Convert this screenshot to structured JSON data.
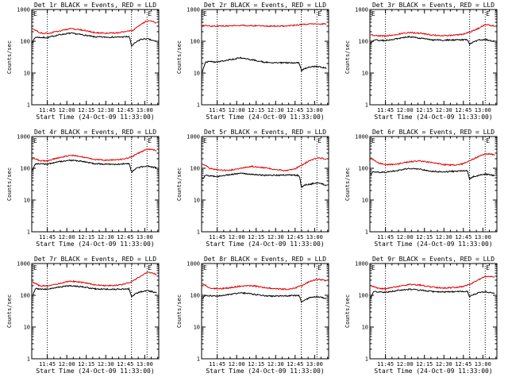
{
  "chart_data": [
    {
      "type": "line",
      "title": "Det 1r BLACK = Events, RED = LLD",
      "xlabel": "Start Time (24-Oct-09 11:33:00)",
      "ylabel": "Counts/sec",
      "yscale": "log",
      "ylim": [
        1,
        1000
      ],
      "yticks": [
        "1",
        "10",
        "100",
        "1000"
      ],
      "xlim": [
        11.55,
        13.18
      ],
      "xticks": [
        "11:45",
        "12:00",
        "12:15",
        "12:30",
        "12:45",
        "13:00"
      ],
      "vlines": [
        11.75,
        12.83,
        13.03
      ],
      "corner_mark": "E",
      "series": [
        {
          "name": "Events",
          "color": "#000000",
          "x": [
            11.56,
            11.6,
            11.65,
            11.75,
            11.9,
            12.05,
            12.2,
            12.35,
            12.5,
            12.65,
            12.8,
            12.83,
            12.88,
            12.95,
            13.03,
            13.1,
            13.15
          ],
          "y": [
            95,
            135,
            132,
            130,
            160,
            180,
            160,
            138,
            135,
            135,
            140,
            70,
            90,
            115,
            120,
            105,
            100
          ]
        },
        {
          "name": "LLD",
          "color": "#e00000",
          "x": [
            11.56,
            11.65,
            11.75,
            11.9,
            12.05,
            12.2,
            12.35,
            12.5,
            12.65,
            12.75,
            12.85,
            12.95,
            13.03,
            13.1,
            13.15
          ],
          "y": [
            250,
            185,
            175,
            210,
            250,
            225,
            190,
            180,
            185,
            200,
            220,
            330,
            440,
            420,
            380
          ]
        }
      ]
    },
    {
      "type": "line",
      "title": "Det 2r BLACK = Events, RED = LLD",
      "xlabel": "Start Time (24-Oct-09 11:33:00)",
      "ylabel": "Counts/sec",
      "yscale": "log",
      "ylim": [
        1,
        1000
      ],
      "yticks": [
        "1",
        "10",
        "100",
        "1000"
      ],
      "xlim": [
        11.55,
        13.18
      ],
      "xticks": [
        "11:45",
        "12:00",
        "12:15",
        "12:30",
        "12:45",
        "13:00"
      ],
      "vlines": [
        11.75,
        12.83,
        13.03
      ],
      "corner_mark": "E",
      "series": [
        {
          "name": "Events",
          "color": "#000000",
          "x": [
            11.56,
            11.6,
            11.65,
            11.75,
            11.9,
            12.05,
            12.2,
            12.35,
            12.5,
            12.65,
            12.8,
            12.83,
            12.88,
            12.95,
            13.03,
            13.1,
            13.15
          ],
          "y": [
            10,
            22,
            23,
            22,
            26,
            30,
            26,
            22,
            21,
            21,
            21,
            12,
            14,
            16,
            16,
            15,
            14
          ]
        },
        {
          "name": "LLD",
          "color": "#e00000",
          "x": [
            11.56,
            11.65,
            11.75,
            11.9,
            12.05,
            12.2,
            12.35,
            12.5,
            12.65,
            12.75,
            12.85,
            12.95,
            13.03,
            13.1,
            13.15
          ],
          "y": [
            310,
            305,
            300,
            305,
            315,
            310,
            305,
            300,
            305,
            320,
            340,
            350,
            360,
            355,
            350
          ]
        }
      ]
    },
    {
      "type": "line",
      "title": "Det 3r BLACK = Events, RED = LLD",
      "xlabel": "Start Time (24-Oct-09 11:33:00)",
      "ylabel": "Counts/sec",
      "yscale": "log",
      "ylim": [
        1,
        1000
      ],
      "yticks": [
        "1",
        "10",
        "100",
        "1000"
      ],
      "xlim": [
        11.55,
        13.18
      ],
      "xticks": [
        "11:45",
        "12:00",
        "12:15",
        "12:30",
        "12:45",
        "13:00"
      ],
      "vlines": [
        11.75,
        12.83,
        13.03
      ],
      "corner_mark": "E",
      "series": [
        {
          "name": "Events",
          "color": "#000000",
          "x": [
            11.56,
            11.6,
            11.65,
            11.75,
            11.9,
            12.05,
            12.2,
            12.35,
            12.5,
            12.65,
            12.8,
            12.83,
            12.88,
            12.95,
            13.03,
            13.1,
            13.15
          ],
          "y": [
            85,
            110,
            108,
            105,
            120,
            140,
            125,
            110,
            108,
            110,
            112,
            80,
            95,
            110,
            115,
            105,
            100
          ]
        },
        {
          "name": "LLD",
          "color": "#e00000",
          "x": [
            11.56,
            11.65,
            11.75,
            11.9,
            12.05,
            12.2,
            12.35,
            12.5,
            12.65,
            12.75,
            12.85,
            12.95,
            13.03,
            13.1,
            13.15
          ],
          "y": [
            160,
            150,
            145,
            165,
            190,
            180,
            155,
            150,
            155,
            170,
            200,
            260,
            330,
            320,
            300
          ]
        }
      ]
    },
    {
      "type": "line",
      "title": "Det 4r BLACK = Events, RED = LLD",
      "xlabel": "Start Time (24-Oct-09 11:33:00)",
      "ylabel": "Counts/sec",
      "yscale": "log",
      "ylim": [
        1,
        1000
      ],
      "yticks": [
        "1",
        "10",
        "100",
        "1000"
      ],
      "xlim": [
        11.55,
        13.18
      ],
      "xticks": [
        "11:45",
        "12:00",
        "12:15",
        "12:30",
        "12:45",
        "13:00"
      ],
      "vlines": [
        11.75,
        12.83,
        13.03
      ],
      "corner_mark": "E",
      "series": [
        {
          "name": "Events",
          "color": "#000000",
          "x": [
            11.56,
            11.6,
            11.65,
            11.75,
            11.9,
            12.05,
            12.2,
            12.35,
            12.5,
            12.65,
            12.8,
            12.83,
            12.88,
            12.95,
            13.03,
            13.1,
            13.15
          ],
          "y": [
            85,
            140,
            138,
            135,
            160,
            180,
            165,
            140,
            135,
            135,
            140,
            75,
            95,
            110,
            118,
            108,
            105
          ]
        },
        {
          "name": "LLD",
          "color": "#e00000",
          "x": [
            11.56,
            11.65,
            11.75,
            11.9,
            12.05,
            12.2,
            12.35,
            12.5,
            12.65,
            12.75,
            12.85,
            12.95,
            13.03,
            13.1,
            13.15
          ],
          "y": [
            220,
            175,
            170,
            215,
            260,
            230,
            190,
            180,
            185,
            200,
            240,
            330,
            400,
            390,
            360
          ]
        }
      ]
    },
    {
      "type": "line",
      "title": "Det 5r BLACK = Events, RED = LLD",
      "xlabel": "Start Time (24-Oct-09 11:33:00)",
      "ylabel": "Counts/sec",
      "yscale": "log",
      "ylim": [
        1,
        1000
      ],
      "yticks": [
        "1",
        "10",
        "100",
        "1000"
      ],
      "xlim": [
        11.55,
        13.18
      ],
      "xticks": [
        "11:45",
        "12:00",
        "12:15",
        "12:30",
        "12:45",
        "13:00"
      ],
      "vlines": [
        11.75,
        12.83,
        13.03
      ],
      "corner_mark": "E",
      "series": [
        {
          "name": "Events",
          "color": "#000000",
          "x": [
            11.56,
            11.6,
            11.65,
            11.75,
            11.9,
            12.05,
            12.2,
            12.35,
            12.5,
            12.65,
            12.8,
            12.83,
            12.88,
            12.95,
            13.03,
            13.1,
            13.15
          ],
          "y": [
            45,
            60,
            58,
            55,
            62,
            70,
            65,
            60,
            60,
            62,
            60,
            25,
            30,
            32,
            35,
            32,
            28
          ]
        },
        {
          "name": "LLD",
          "color": "#e00000",
          "x": [
            11.56,
            11.65,
            11.75,
            11.9,
            12.05,
            12.2,
            12.35,
            12.5,
            12.65,
            12.75,
            12.85,
            12.95,
            13.03,
            13.1,
            13.15
          ],
          "y": [
            140,
            100,
            90,
            85,
            100,
            115,
            105,
            90,
            85,
            95,
            130,
            180,
            210,
            205,
            190
          ]
        }
      ]
    },
    {
      "type": "line",
      "title": "Det 6r BLACK = Events, RED = LLD",
      "xlabel": "Start Time (24-Oct-09 11:33:00)",
      "ylabel": "Counts/sec",
      "yscale": "log",
      "ylim": [
        1,
        1000
      ],
      "yticks": [
        "1",
        "10",
        "100",
        "1000"
      ],
      "xlim": [
        11.55,
        13.18
      ],
      "xticks": [
        "11:45",
        "12:00",
        "12:15",
        "12:30",
        "12:45",
        "13:00"
      ],
      "vlines": [
        11.75,
        12.83,
        13.03
      ],
      "corner_mark": "E",
      "series": [
        {
          "name": "Events",
          "color": "#000000",
          "x": [
            11.56,
            11.6,
            11.65,
            11.75,
            11.9,
            12.05,
            12.2,
            12.35,
            12.5,
            12.65,
            12.8,
            12.83,
            12.88,
            12.95,
            13.03,
            13.1,
            13.15
          ],
          "y": [
            65,
            78,
            76,
            75,
            85,
            100,
            92,
            80,
            78,
            80,
            85,
            45,
            55,
            60,
            65,
            62,
            58
          ]
        },
        {
          "name": "LLD",
          "color": "#e00000",
          "x": [
            11.56,
            11.65,
            11.75,
            11.9,
            12.05,
            12.2,
            12.35,
            12.5,
            12.65,
            12.75,
            12.85,
            12.95,
            13.03,
            13.1,
            13.15
          ],
          "y": [
            210,
            150,
            130,
            135,
            160,
            170,
            150,
            130,
            125,
            140,
            180,
            240,
            290,
            280,
            260
          ]
        }
      ]
    },
    {
      "type": "line",
      "title": "Det 7r BLACK = Events, RED = LLD",
      "xlabel": "Start Time (24-Oct-09 11:33:00)",
      "ylabel": "Counts/sec",
      "yscale": "log",
      "ylim": [
        1,
        1000
      ],
      "yticks": [
        "1",
        "10",
        "100",
        "1000"
      ],
      "xlim": [
        11.55,
        13.18
      ],
      "xticks": [
        "11:45",
        "12:00",
        "12:15",
        "12:30",
        "12:45",
        "13:00"
      ],
      "vlines": [
        11.75,
        12.83,
        13.03
      ],
      "corner_mark": "E",
      "series": [
        {
          "name": "Events",
          "color": "#000000",
          "x": [
            11.56,
            11.6,
            11.65,
            11.75,
            11.9,
            12.05,
            12.2,
            12.35,
            12.5,
            12.65,
            12.8,
            12.83,
            12.88,
            12.95,
            13.03,
            13.1,
            13.15
          ],
          "y": [
            95,
            160,
            158,
            155,
            180,
            200,
            185,
            160,
            155,
            155,
            160,
            90,
            110,
            130,
            140,
            130,
            120
          ]
        },
        {
          "name": "LLD",
          "color": "#e00000",
          "x": [
            11.56,
            11.65,
            11.75,
            11.9,
            12.05,
            12.2,
            12.35,
            12.5,
            12.65,
            12.75,
            12.85,
            12.95,
            13.03,
            13.1,
            13.15
          ],
          "y": [
            260,
            200,
            195,
            235,
            280,
            255,
            215,
            200,
            205,
            225,
            280,
            400,
            520,
            500,
            450
          ]
        }
      ]
    },
    {
      "type": "line",
      "title": "Det 8r BLACK = Events, RED = LLD",
      "xlabel": "Start Time (24-Oct-09 11:33:00)",
      "ylabel": "Counts/sec",
      "yscale": "log",
      "ylim": [
        1,
        1000
      ],
      "yticks": [
        "1",
        "10",
        "100",
        "1000"
      ],
      "xlim": [
        11.55,
        13.18
      ],
      "xticks": [
        "11:45",
        "12:00",
        "12:15",
        "12:30",
        "12:45",
        "13:00"
      ],
      "vlines": [
        11.75,
        12.83,
        13.03
      ],
      "corner_mark": "E",
      "series": [
        {
          "name": "Events",
          "color": "#000000",
          "x": [
            11.56,
            11.6,
            11.65,
            11.75,
            11.9,
            12.05,
            12.2,
            12.35,
            12.5,
            12.65,
            12.8,
            12.83,
            12.88,
            12.95,
            13.03,
            13.1,
            13.15
          ],
          "y": [
            75,
            98,
            96,
            95,
            105,
            120,
            110,
            96,
            94,
            96,
            100,
            60,
            72,
            85,
            90,
            85,
            80
          ]
        },
        {
          "name": "LLD",
          "color": "#e00000",
          "x": [
            11.56,
            11.65,
            11.75,
            11.9,
            12.05,
            12.2,
            12.35,
            12.5,
            12.65,
            12.75,
            12.85,
            12.95,
            13.03,
            13.1,
            13.15
          ],
          "y": [
            230,
            170,
            160,
            170,
            195,
            200,
            175,
            160,
            155,
            170,
            210,
            280,
            320,
            310,
            290
          ]
        }
      ]
    },
    {
      "type": "line",
      "title": "Det 9r BLACK = Events, RED = LLD",
      "xlabel": "Start Time (24-Oct-09 11:33:00)",
      "ylabel": "Counts/sec",
      "yscale": "log",
      "ylim": [
        1,
        1000
      ],
      "yticks": [
        "1",
        "10",
        "100",
        "1000"
      ],
      "xlim": [
        11.55,
        13.18
      ],
      "xticks": [
        "11:45",
        "12:00",
        "12:15",
        "12:30",
        "12:45",
        "13:00"
      ],
      "vlines": [
        11.75,
        12.83,
        13.03
      ],
      "corner_mark": "E",
      "series": [
        {
          "name": "Events",
          "color": "#000000",
          "x": [
            11.56,
            11.6,
            11.65,
            11.75,
            11.9,
            12.05,
            12.2,
            12.35,
            12.5,
            12.65,
            12.8,
            12.83,
            12.88,
            12.95,
            13.03,
            13.1,
            13.15
          ],
          "y": [
            80,
            130,
            128,
            125,
            140,
            155,
            145,
            130,
            128,
            130,
            135,
            90,
            105,
            120,
            130,
            122,
            115
          ]
        },
        {
          "name": "LLD",
          "color": "#e00000",
          "x": [
            11.56,
            11.65,
            11.75,
            11.9,
            12.05,
            12.2,
            12.35,
            12.5,
            12.65,
            12.75,
            12.85,
            12.95,
            13.03,
            13.1,
            13.15
          ],
          "y": [
            200,
            165,
            160,
            185,
            220,
            210,
            180,
            170,
            175,
            190,
            230,
            310,
            400,
            390,
            360
          ]
        }
      ]
    }
  ]
}
